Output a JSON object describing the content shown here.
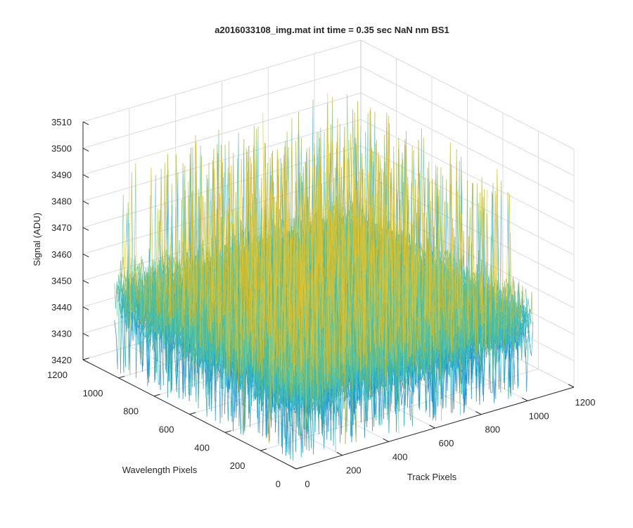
{
  "chart_data": {
    "type": "surface3d",
    "title": "a2016033108_img.mat int time = 0.35 sec  NaN nm BS1",
    "xlabel": "Track Pixels",
    "ylabel": "Wavelength Pixels",
    "zlabel": "Signal (ADU)",
    "xlim": [
      0,
      1200
    ],
    "ylim": [
      0,
      1200
    ],
    "zlim": [
      3420,
      3510
    ],
    "xticks": [
      "0",
      "200",
      "400",
      "600",
      "800",
      "1000",
      "1200"
    ],
    "yticks": [
      "0",
      "200",
      "400",
      "600",
      "800",
      "1000",
      "1200"
    ],
    "zticks": [
      "3420",
      "3430",
      "3440",
      "3450",
      "3460",
      "3470",
      "3480",
      "3490",
      "3500",
      "3510"
    ],
    "grid": true,
    "data_extent": {
      "x": [
        1,
        1024
      ],
      "y": [
        1,
        1024
      ]
    },
    "signal": {
      "mean": 3449,
      "typical_range": [
        3430,
        3475
      ],
      "extreme_range": [
        3422,
        3503
      ]
    },
    "colormap": [
      "#0072bd",
      "#1a9bd4",
      "#2ab5c0",
      "#5cbf8f",
      "#a8c05a",
      "#e6c32a"
    ]
  }
}
